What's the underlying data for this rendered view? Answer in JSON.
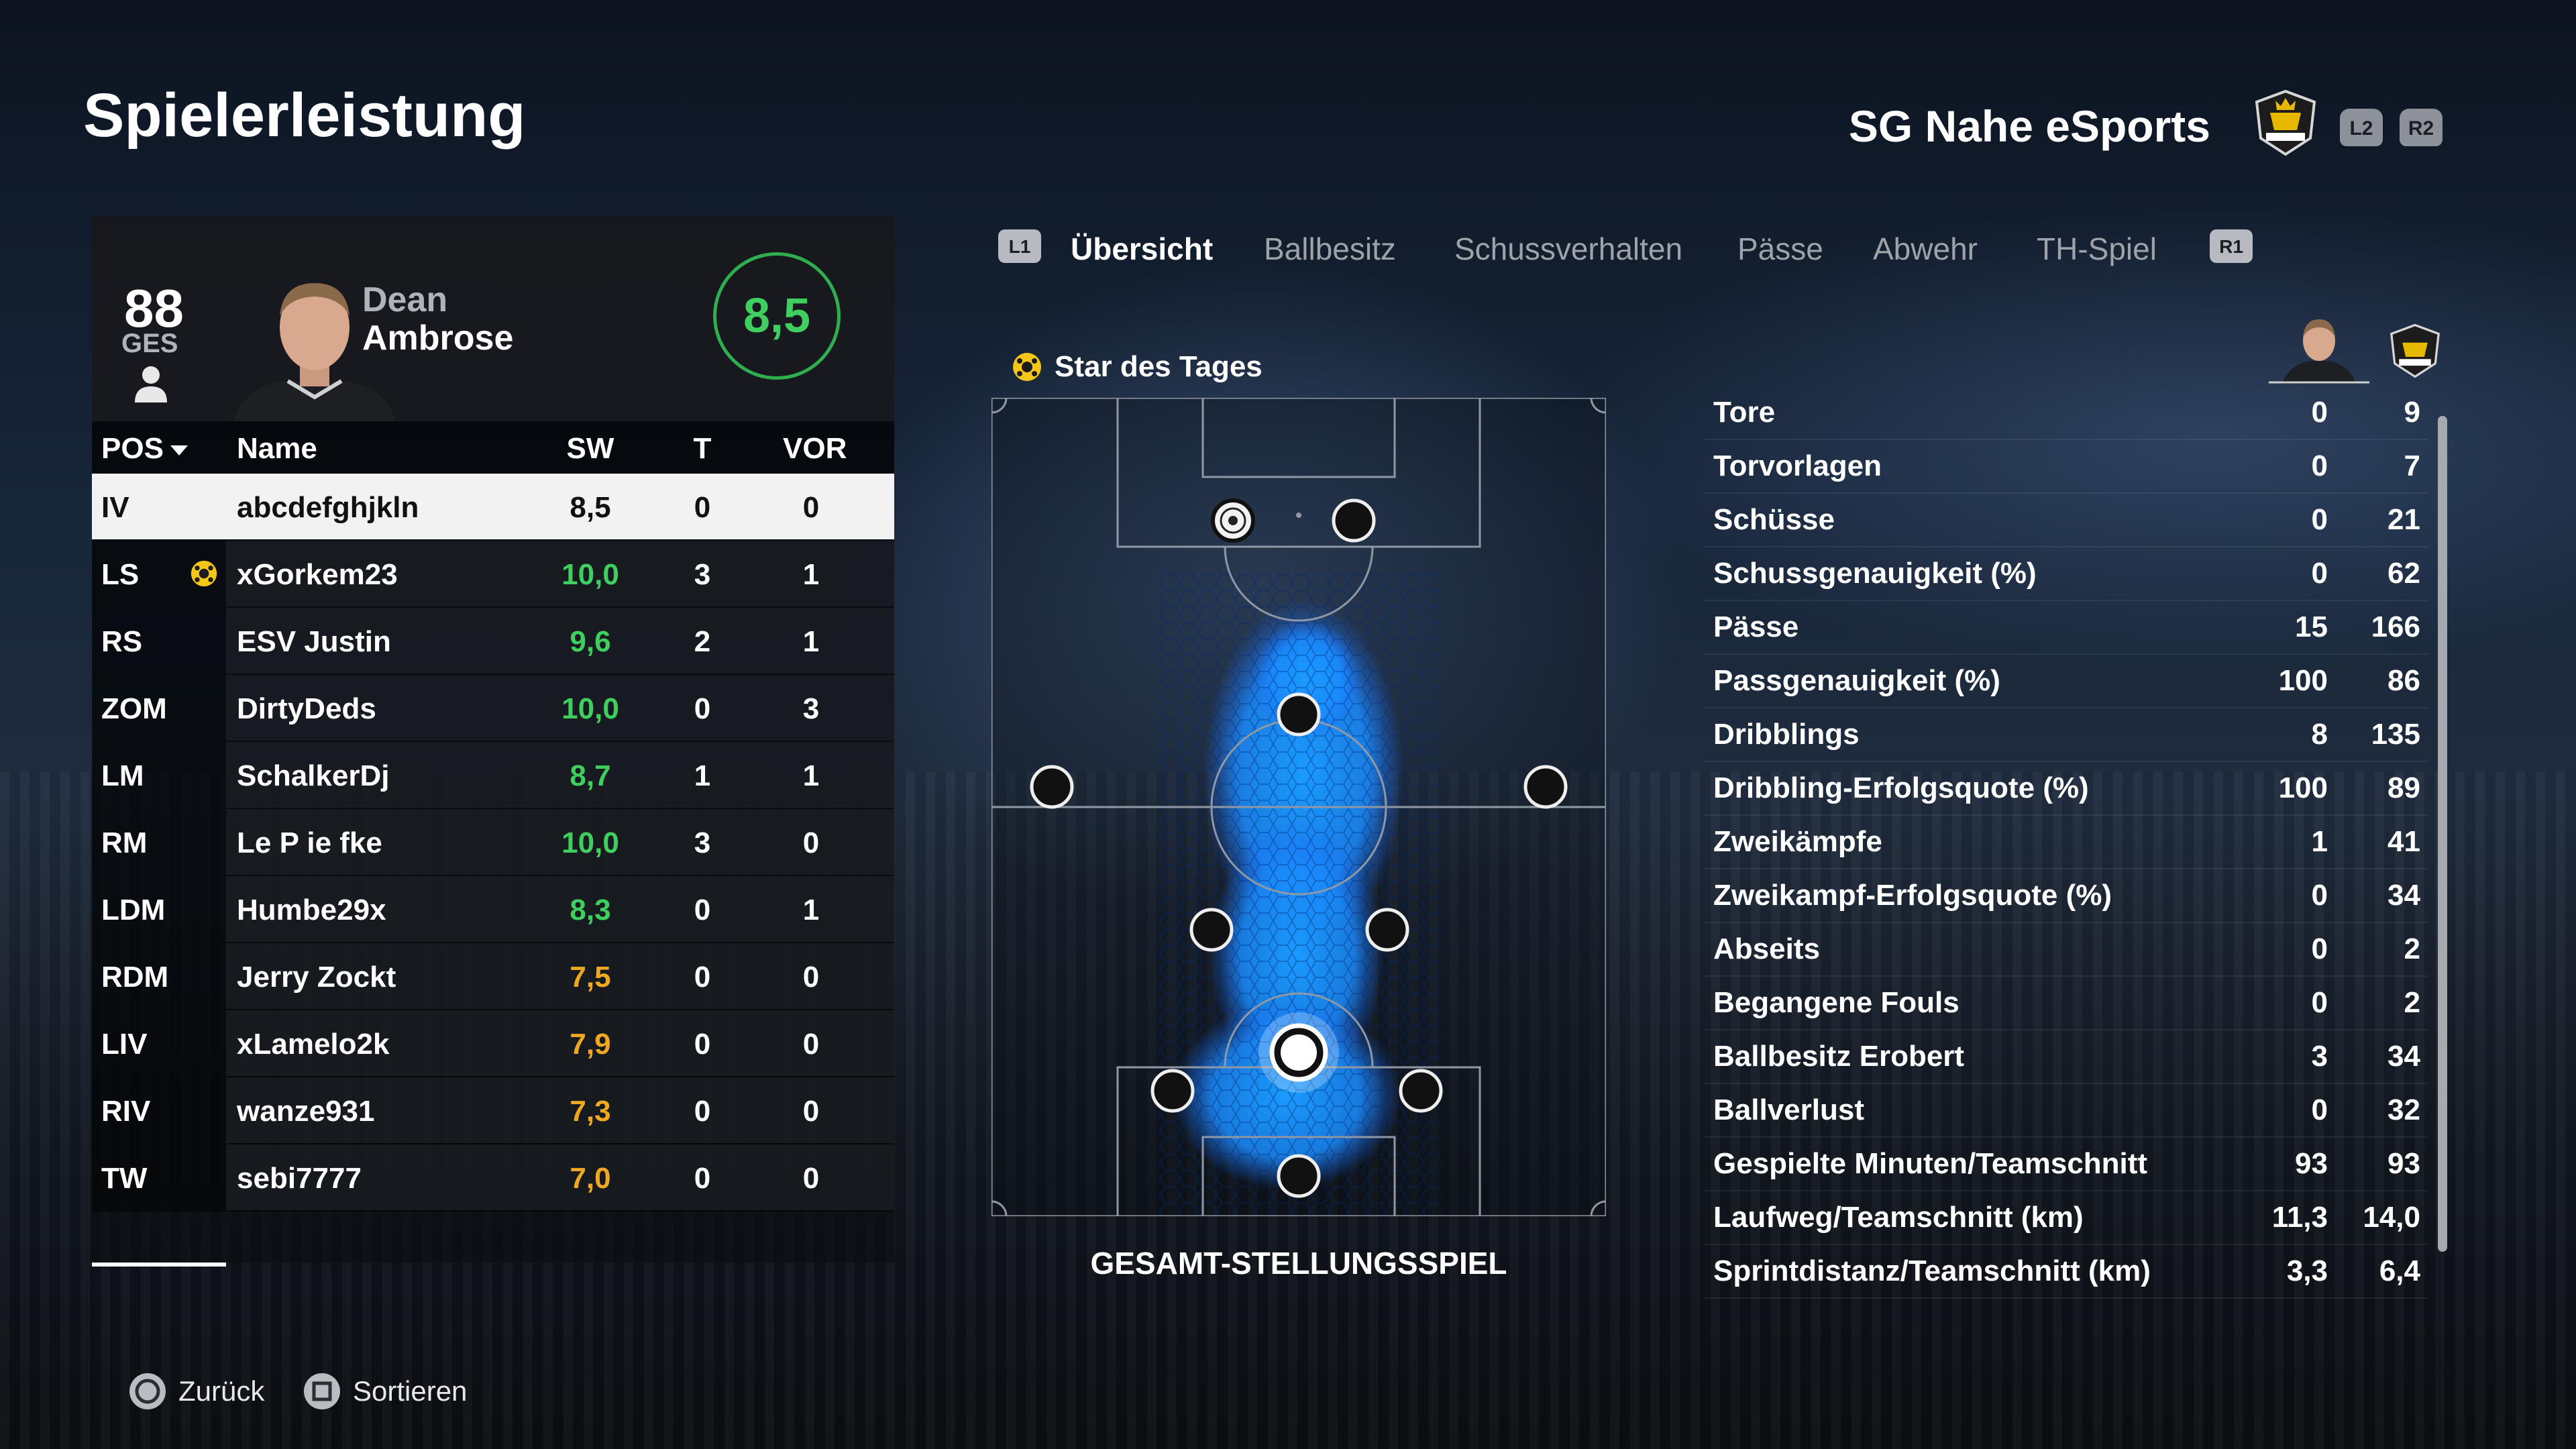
{
  "page_title": "Spielerleistung",
  "club": {
    "name": "SG Nahe eSports",
    "crest_icon": "club-crest-icon",
    "buttons": [
      "L2",
      "R2"
    ]
  },
  "player_card": {
    "overall": "88",
    "overall_label": "GES",
    "first_name": "Dean",
    "last_name": "Ambrose",
    "rating": "8,5"
  },
  "table": {
    "headers": {
      "pos": "POS",
      "name": "Name",
      "sw": "SW",
      "t": "T",
      "vor": "VOR"
    },
    "rows": [
      {
        "pos": "IV",
        "name": "abcdefghjkln",
        "sw": "8,5",
        "t": "0",
        "vor": "0",
        "selected": true
      },
      {
        "pos": "LS",
        "name": "xGorkem23",
        "sw": "10,0",
        "t": "3",
        "vor": "1",
        "star": true
      },
      {
        "pos": "RS",
        "name": "ESV Justin",
        "sw": "9,6",
        "t": "2",
        "vor": "1"
      },
      {
        "pos": "ZOM",
        "name": "DirtyDeds",
        "sw": "10,0",
        "t": "0",
        "vor": "3"
      },
      {
        "pos": "LM",
        "name": "SchalkerDj",
        "sw": "8,7",
        "t": "1",
        "vor": "1"
      },
      {
        "pos": "RM",
        "name": "Le P ie fke",
        "sw": "10,0",
        "t": "3",
        "vor": "0"
      },
      {
        "pos": "LDM",
        "name": "Humbe29x",
        "sw": "8,3",
        "t": "0",
        "vor": "1"
      },
      {
        "pos": "RDM",
        "name": "Jerry Zockt",
        "sw": "7,5",
        "t": "0",
        "vor": "0"
      },
      {
        "pos": "LIV",
        "name": "xLamelo2k",
        "sw": "7,9",
        "t": "0",
        "vor": "0"
      },
      {
        "pos": "RIV",
        "name": "wanze931",
        "sw": "7,3",
        "t": "0",
        "vor": "0"
      },
      {
        "pos": "TW",
        "name": "sebi7777",
        "sw": "7,0",
        "t": "0",
        "vor": "0"
      }
    ]
  },
  "tabs": {
    "left_button": "L1",
    "right_button": "R1",
    "items": [
      "Übersicht",
      "Ballbesitz",
      "Schussverhalten",
      "Pässe",
      "Abwehr",
      "TH-Spiel"
    ],
    "active": "Übersicht"
  },
  "star_of_day": "Star des Tages",
  "pitch_caption": "GESAMT-STELLUNGSSPIEL",
  "stats": [
    {
      "label": "Tore",
      "player": "0",
      "team": "9"
    },
    {
      "label": "Torvorlagen",
      "player": "0",
      "team": "7"
    },
    {
      "label": "Schüsse",
      "player": "0",
      "team": "21"
    },
    {
      "label": "Schussgenauigkeit (%)",
      "player": "0",
      "team": "62"
    },
    {
      "label": "Pässe",
      "player": "15",
      "team": "166"
    },
    {
      "label": "Passgenauigkeit (%)",
      "player": "100",
      "team": "86"
    },
    {
      "label": "Dribblings",
      "player": "8",
      "team": "135"
    },
    {
      "label": "Dribbling-Erfolgsquote (%)",
      "player": "100",
      "team": "89"
    },
    {
      "label": "Zweikämpfe",
      "player": "1",
      "team": "41"
    },
    {
      "label": "Zweikampf-Erfolgsquote (%)",
      "player": "0",
      "team": "34"
    },
    {
      "label": "Abseits",
      "player": "0",
      "team": "2"
    },
    {
      "label": "Begangene Fouls",
      "player": "0",
      "team": "2"
    },
    {
      "label": "Ballbesitz Erobert",
      "player": "3",
      "team": "34"
    },
    {
      "label": "Ballverlust",
      "player": "0",
      "team": "32"
    },
    {
      "label": "Gespielte Minuten/Teamschnitt",
      "player": "93",
      "team": "93"
    },
    {
      "label": "Laufweg/Teamschnitt (km)",
      "player": "11,3",
      "team": "14,0"
    },
    {
      "label": "Sprintdistanz/Teamschnitt (km)",
      "player": "3,3",
      "team": "6,4"
    }
  ],
  "footer": {
    "back": "Zurück",
    "sort": "Sortieren"
  },
  "colors": {
    "rating_green": "#3ecf5e",
    "rating_orange": "#f0a820",
    "heatmap_blue": "#1a8cff"
  }
}
